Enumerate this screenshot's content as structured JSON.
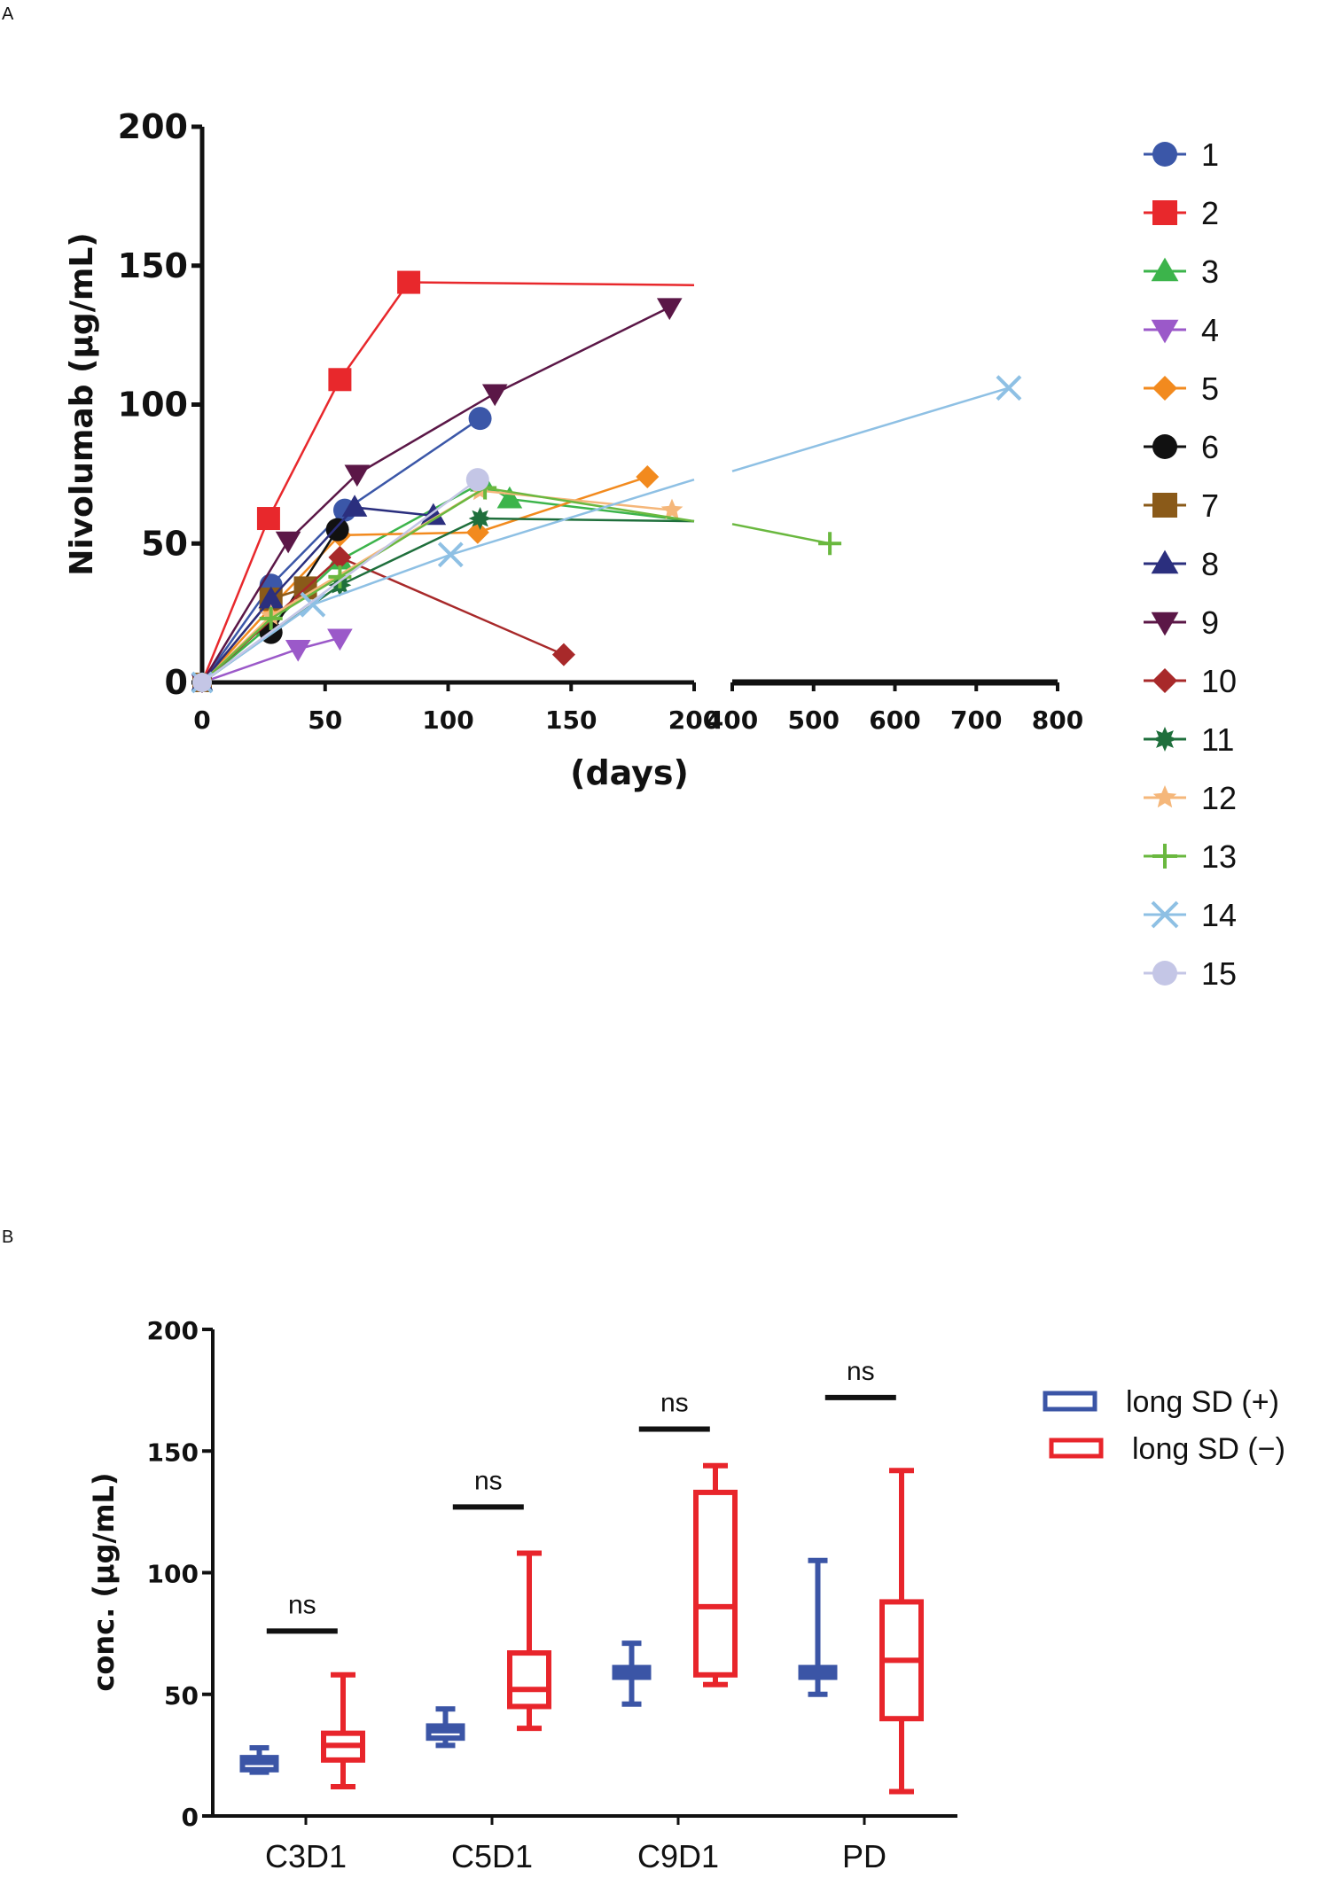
{
  "panel_labels": [
    "A",
    "B"
  ],
  "chart_data": [
    {
      "type": "line",
      "panel": "A",
      "xlabel": "(days)",
      "ylabel": "Nivolumab (μg/mL)",
      "ylim": [
        0,
        200
      ],
      "yticks": [
        0,
        50,
        100,
        150,
        200
      ],
      "x_segments": [
        {
          "range": [
            0,
            200
          ],
          "ticks": [
            0,
            50,
            100,
            150,
            200
          ]
        },
        {
          "range": [
            400,
            800
          ],
          "ticks": [
            400,
            500,
            600,
            700,
            800
          ]
        }
      ],
      "series": [
        {
          "name": "1",
          "color": "#3b57a8",
          "marker": "circle",
          "points": [
            [
              0,
              0
            ],
            [
              28,
              35
            ],
            [
              58,
              62
            ],
            [
              113,
              95
            ]
          ]
        },
        {
          "name": "2",
          "color": "#e8282c",
          "marker": "square",
          "points": [
            [
              0,
              0
            ],
            [
              27,
              59
            ],
            [
              56,
              109
            ],
            [
              84,
              144
            ],
            [
              200,
              143
            ]
          ]
        },
        {
          "name": "3",
          "color": "#3cb44b",
          "marker": "triangle-up",
          "points": [
            [
              0,
              0
            ],
            [
              27,
              20
            ],
            [
              56,
              44
            ],
            [
              114,
              72
            ],
            [
              125,
              66
            ],
            [
              200,
              58
            ]
          ]
        },
        {
          "name": "4",
          "color": "#9b59c9",
          "marker": "triangle-down",
          "points": [
            [
              0,
              0
            ],
            [
              39,
              12
            ],
            [
              56,
              16
            ]
          ]
        },
        {
          "name": "5",
          "color": "#f28a1e",
          "marker": "diamond",
          "points": [
            [
              0,
              0
            ],
            [
              28,
              27
            ],
            [
              56,
              53
            ],
            [
              112,
              54
            ],
            [
              181,
              74
            ]
          ]
        },
        {
          "name": "6",
          "color": "#111111",
          "marker": "circle",
          "points": [
            [
              0,
              0
            ],
            [
              28,
              18
            ],
            [
              55,
              55
            ]
          ]
        },
        {
          "name": "7",
          "color": "#8a5a19",
          "marker": "square",
          "points": [
            [
              0,
              0
            ],
            [
              28,
              30
            ],
            [
              42,
              34
            ]
          ]
        },
        {
          "name": "8",
          "color": "#2b2f7e",
          "marker": "triangle-up",
          "points": [
            [
              0,
              0
            ],
            [
              28,
              30
            ],
            [
              62,
              63
            ],
            [
              94,
              60
            ]
          ]
        },
        {
          "name": "9",
          "color": "#5b1747",
          "marker": "triangle-down",
          "points": [
            [
              0,
              0
            ],
            [
              35,
              51
            ],
            [
              63,
              75
            ],
            [
              119,
              104
            ],
            [
              190,
              135
            ]
          ]
        },
        {
          "name": "10",
          "color": "#a8292a",
          "marker": "diamond",
          "points": [
            [
              0,
              0
            ],
            [
              56,
              45
            ],
            [
              147,
              10
            ]
          ]
        },
        {
          "name": "11",
          "color": "#1f6f3c",
          "marker": "star8",
          "points": [
            [
              0,
              0
            ],
            [
              56,
              35
            ],
            [
              113,
              59
            ],
            [
              200,
              58
            ]
          ]
        },
        {
          "name": "12",
          "color": "#f5b77a",
          "marker": "star5",
          "points": [
            [
              0,
              0
            ],
            [
              28,
              24
            ],
            [
              113,
              69
            ],
            [
              191,
              62
            ]
          ]
        },
        {
          "name": "13",
          "color": "#6ab83f",
          "marker": "plus",
          "points": [
            [
              0,
              0
            ],
            [
              28,
              23
            ],
            [
              56,
              38
            ],
            [
              115,
              70
            ],
            [
              200,
              58
            ],
            [
              400,
              57
            ],
            [
              520,
              50
            ]
          ]
        },
        {
          "name": "14",
          "color": "#8ec0e4",
          "marker": "x",
          "points": [
            [
              0,
              0
            ],
            [
              45,
              28
            ],
            [
              101,
              46
            ],
            [
              200,
              73
            ],
            [
              400,
              76
            ],
            [
              740,
              106
            ]
          ]
        },
        {
          "name": "15",
          "color": "#c4c6e6",
          "marker": "circle",
          "points": [
            [
              0,
              0
            ],
            [
              112,
              73
            ]
          ]
        }
      ]
    },
    {
      "type": "box",
      "panel": "B",
      "xlabel": "",
      "ylabel": "conc. (μg/mL)",
      "ylim": [
        0,
        200
      ],
      "yticks": [
        0,
        50,
        100,
        150,
        200
      ],
      "categories": [
        "C3D1",
        "C5D1",
        "C9D1",
        "PD"
      ],
      "series": [
        {
          "name": "long SD (+)",
          "color": "#3b55a6",
          "boxes": [
            {
              "min": 18,
              "q1": 19,
              "median": 22,
              "q3": 24,
              "max": 28
            },
            {
              "min": 29,
              "q1": 32,
              "median": 35,
              "q3": 37,
              "max": 44
            },
            {
              "min": 46,
              "q1": 57,
              "median": 59,
              "q3": 61,
              "max": 71
            },
            {
              "min": 50,
              "q1": 57,
              "median": 59,
              "q3": 61,
              "max": 105
            }
          ]
        },
        {
          "name": "long SD (−)",
          "color": "#e8252b",
          "boxes": [
            {
              "min": 12,
              "q1": 23,
              "median": 29,
              "q3": 34,
              "max": 58
            },
            {
              "min": 36,
              "q1": 45,
              "median": 52,
              "q3": 67,
              "max": 108
            },
            {
              "min": 54,
              "q1": 58,
              "median": 86,
              "q3": 133,
              "max": 144
            },
            {
              "min": 10,
              "q1": 40,
              "median": 64,
              "q3": 88,
              "max": 142
            }
          ]
        }
      ],
      "annotations": [
        {
          "category": "C3D1",
          "text": "ns",
          "y": 76
        },
        {
          "category": "C5D1",
          "text": "ns",
          "y": 127
        },
        {
          "category": "C9D1",
          "text": "ns",
          "y": 159
        },
        {
          "category": "PD",
          "text": "ns",
          "y": 172
        }
      ]
    }
  ]
}
